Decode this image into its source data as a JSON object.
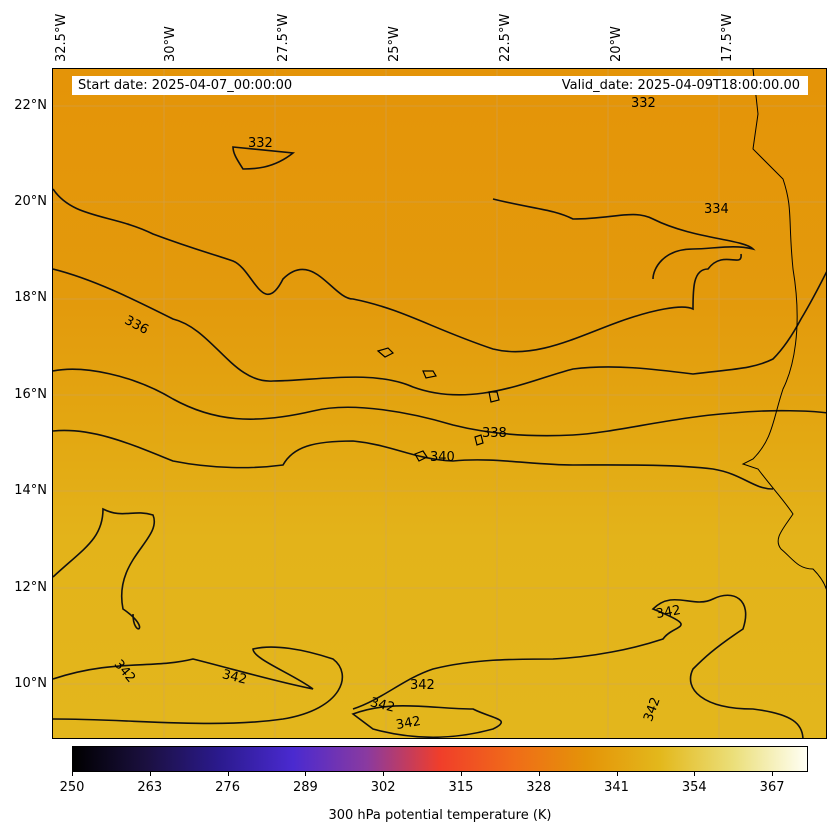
{
  "map": {
    "longitude_labels": [
      "32.5°W",
      "30°W",
      "27.5°W",
      "25°W",
      "22.5°W",
      "20°W",
      "17.5°W"
    ],
    "latitude_labels": [
      "22°N",
      "20°N",
      "18°N",
      "16°N",
      "14°N",
      "12°N",
      "10°N"
    ],
    "start_date": "Start date: 2025-04-07_00:00:00",
    "valid_date": "Valid_date: 2025-04-09T18:00:00.00",
    "contour_labels": [
      "332",
      "332",
      "334",
      "336",
      "338",
      "340",
      "342",
      "342",
      "342",
      "342",
      "342",
      "342",
      "342"
    ],
    "field_colors": {
      "north": "#e49408",
      "middle": "#e3a510",
      "south": "#e3b51a"
    }
  },
  "colorbar": {
    "tick_labels": [
      "250",
      "263",
      "276",
      "289",
      "302",
      "315",
      "328",
      "341",
      "354",
      "367"
    ],
    "title": "300 hPa potential temperature (K)",
    "min": 250,
    "max": 373
  }
}
